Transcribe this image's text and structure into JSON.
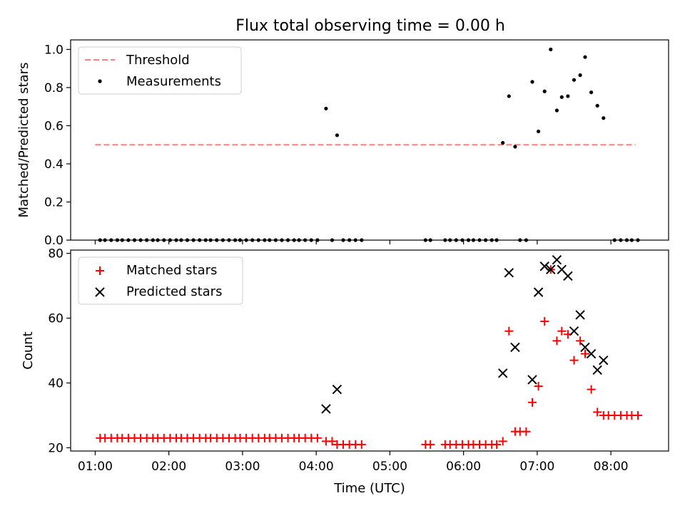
{
  "chart_data": [
    {
      "type": "scatter",
      "title": "Flux total observing time = 0.00 h",
      "xlabel": "",
      "ylabel": "Matched/Predicted stars",
      "ylim": [
        0,
        1.05
      ],
      "xlim": [
        "00:40",
        "08:47"
      ],
      "yticks": [
        0.0,
        0.2,
        0.4,
        0.6,
        0.8,
        1.0
      ],
      "ytick_labels": [
        "0.0",
        "0.2",
        "0.4",
        "0.6",
        "0.8",
        "1.0"
      ],
      "x_tick_labels_shown": false,
      "legend": {
        "position": "top-left",
        "entries": [
          "Threshold",
          "Measurements"
        ]
      },
      "threshold": {
        "name": "Threshold",
        "value": 0.5,
        "x_range": [
          "01:00",
          "08:20"
        ],
        "color": "#ff7f7f",
        "style": "dashed"
      },
      "series": [
        {
          "name": "Measurements",
          "marker": "dot",
          "color": "#000000",
          "points": [
            [
              "01:04",
              0
            ],
            [
              "01:08",
              0
            ],
            [
              "01:13",
              0
            ],
            [
              "01:18",
              0
            ],
            [
              "01:22",
              0
            ],
            [
              "01:27",
              0
            ],
            [
              "01:32",
              0
            ],
            [
              "01:37",
              0
            ],
            [
              "01:42",
              0
            ],
            [
              "01:47",
              0
            ],
            [
              "01:51",
              0
            ],
            [
              "01:56",
              0
            ],
            [
              "02:01",
              0
            ],
            [
              "02:06",
              0
            ],
            [
              "02:10",
              0
            ],
            [
              "02:15",
              0
            ],
            [
              "02:20",
              0
            ],
            [
              "02:25",
              0
            ],
            [
              "02:30",
              0
            ],
            [
              "02:34",
              0
            ],
            [
              "02:39",
              0
            ],
            [
              "02:44",
              0
            ],
            [
              "02:49",
              0
            ],
            [
              "02:54",
              0
            ],
            [
              "02:58",
              0
            ],
            [
              "03:03",
              0
            ],
            [
              "03:08",
              0
            ],
            [
              "03:13",
              0
            ],
            [
              "03:18",
              0
            ],
            [
              "03:22",
              0
            ],
            [
              "03:27",
              0
            ],
            [
              "03:32",
              0
            ],
            [
              "03:37",
              0
            ],
            [
              "03:42",
              0
            ],
            [
              "03:46",
              0
            ],
            [
              "03:51",
              0
            ],
            [
              "03:56",
              0
            ],
            [
              "04:01",
              0
            ],
            [
              "04:08",
              0.69
            ],
            [
              "04:13",
              0
            ],
            [
              "04:17",
              0.55
            ],
            [
              "04:22",
              0
            ],
            [
              "04:27",
              0
            ],
            [
              "04:32",
              0
            ],
            [
              "04:37",
              0
            ],
            [
              "05:29",
              0
            ],
            [
              "05:33",
              0
            ],
            [
              "05:45",
              0
            ],
            [
              "05:49",
              0
            ],
            [
              "05:54",
              0
            ],
            [
              "05:59",
              0
            ],
            [
              "06:04",
              0
            ],
            [
              "06:08",
              0
            ],
            [
              "06:13",
              0
            ],
            [
              "06:18",
              0
            ],
            [
              "06:23",
              0
            ],
            [
              "06:27",
              0
            ],
            [
              "06:32",
              0.51
            ],
            [
              "06:37",
              0.755
            ],
            [
              "06:42",
              0.49
            ],
            [
              "06:46",
              0
            ],
            [
              "06:51",
              0
            ],
            [
              "06:56",
              0.83
            ],
            [
              "07:01",
              0.57
            ],
            [
              "07:06",
              0.78
            ],
            [
              "07:11",
              1.0
            ],
            [
              "07:16",
              0.68
            ],
            [
              "07:20",
              0.75
            ],
            [
              "07:25",
              0.755
            ],
            [
              "07:30",
              0.84
            ],
            [
              "07:35",
              0.865
            ],
            [
              "07:39",
              0.96
            ],
            [
              "07:44",
              0.775
            ],
            [
              "07:49",
              0.705
            ],
            [
              "07:54",
              0.64
            ],
            [
              "08:03",
              0
            ],
            [
              "08:08",
              0
            ],
            [
              "08:13",
              0
            ],
            [
              "08:17",
              0
            ],
            [
              "08:22",
              0
            ]
          ]
        }
      ]
    },
    {
      "type": "scatter",
      "title": "",
      "xlabel": "Time (UTC)",
      "ylabel": "Count",
      "ylim": [
        19,
        81
      ],
      "xlim": [
        "00:40",
        "08:47"
      ],
      "yticks": [
        20,
        40,
        60,
        80
      ],
      "ytick_labels": [
        "20",
        "40",
        "60",
        "80"
      ],
      "xticks": [
        "01:00",
        "02:00",
        "03:00",
        "04:00",
        "05:00",
        "06:00",
        "07:00",
        "08:00"
      ],
      "legend": {
        "position": "top-left",
        "entries": [
          "Matched stars",
          "Predicted stars"
        ]
      },
      "series": [
        {
          "name": "Matched stars",
          "marker": "plus",
          "color": "#ff0000",
          "points": [
            [
              "01:04",
              23
            ],
            [
              "01:08",
              23
            ],
            [
              "01:13",
              23
            ],
            [
              "01:18",
              23
            ],
            [
              "01:22",
              23
            ],
            [
              "01:27",
              23
            ],
            [
              "01:32",
              23
            ],
            [
              "01:37",
              23
            ],
            [
              "01:42",
              23
            ],
            [
              "01:47",
              23
            ],
            [
              "01:51",
              23
            ],
            [
              "01:56",
              23
            ],
            [
              "02:01",
              23
            ],
            [
              "02:06",
              23
            ],
            [
              "02:10",
              23
            ],
            [
              "02:15",
              23
            ],
            [
              "02:20",
              23
            ],
            [
              "02:25",
              23
            ],
            [
              "02:30",
              23
            ],
            [
              "02:34",
              23
            ],
            [
              "02:39",
              23
            ],
            [
              "02:44",
              23
            ],
            [
              "02:49",
              23
            ],
            [
              "02:54",
              23
            ],
            [
              "02:58",
              23
            ],
            [
              "03:03",
              23
            ],
            [
              "03:08",
              23
            ],
            [
              "03:13",
              23
            ],
            [
              "03:18",
              23
            ],
            [
              "03:22",
              23
            ],
            [
              "03:27",
              23
            ],
            [
              "03:32",
              23
            ],
            [
              "03:37",
              23
            ],
            [
              "03:42",
              23
            ],
            [
              "03:46",
              23
            ],
            [
              "03:51",
              23
            ],
            [
              "03:56",
              23
            ],
            [
              "04:01",
              23
            ],
            [
              "04:08",
              22
            ],
            [
              "04:13",
              22
            ],
            [
              "04:17",
              21
            ],
            [
              "04:22",
              21
            ],
            [
              "04:27",
              21
            ],
            [
              "04:32",
              21
            ],
            [
              "04:37",
              21
            ],
            [
              "05:29",
              21
            ],
            [
              "05:33",
              21
            ],
            [
              "05:45",
              21
            ],
            [
              "05:49",
              21
            ],
            [
              "05:54",
              21
            ],
            [
              "05:59",
              21
            ],
            [
              "06:04",
              21
            ],
            [
              "06:08",
              21
            ],
            [
              "06:13",
              21
            ],
            [
              "06:18",
              21
            ],
            [
              "06:23",
              21
            ],
            [
              "06:27",
              21
            ],
            [
              "06:32",
              22
            ],
            [
              "06:37",
              56
            ],
            [
              "06:42",
              25
            ],
            [
              "06:46",
              25
            ],
            [
              "06:51",
              25
            ],
            [
              "06:56",
              34
            ],
            [
              "07:01",
              39
            ],
            [
              "07:06",
              59
            ],
            [
              "07:11",
              75
            ],
            [
              "07:16",
              53
            ],
            [
              "07:20",
              56
            ],
            [
              "07:25",
              55
            ],
            [
              "07:30",
              47
            ],
            [
              "07:35",
              53
            ],
            [
              "07:39",
              49
            ],
            [
              "07:44",
              38
            ],
            [
              "07:49",
              31
            ],
            [
              "07:54",
              30
            ],
            [
              "07:58",
              30
            ],
            [
              "08:03",
              30
            ],
            [
              "08:08",
              30
            ],
            [
              "08:13",
              30
            ],
            [
              "08:17",
              30
            ],
            [
              "08:22",
              30
            ]
          ]
        },
        {
          "name": "Predicted stars",
          "marker": "x",
          "color": "#000000",
          "points": [
            [
              "04:08",
              32
            ],
            [
              "04:17",
              38
            ],
            [
              "06:32",
              43
            ],
            [
              "06:37",
              74
            ],
            [
              "06:42",
              51
            ],
            [
              "06:56",
              41
            ],
            [
              "07:01",
              68
            ],
            [
              "07:06",
              76
            ],
            [
              "07:11",
              75
            ],
            [
              "07:16",
              78
            ],
            [
              "07:20",
              75
            ],
            [
              "07:25",
              73
            ],
            [
              "07:30",
              56
            ],
            [
              "07:35",
              61
            ],
            [
              "07:39",
              51
            ],
            [
              "07:44",
              49
            ],
            [
              "07:49",
              44
            ],
            [
              "07:54",
              47
            ]
          ]
        }
      ]
    }
  ]
}
